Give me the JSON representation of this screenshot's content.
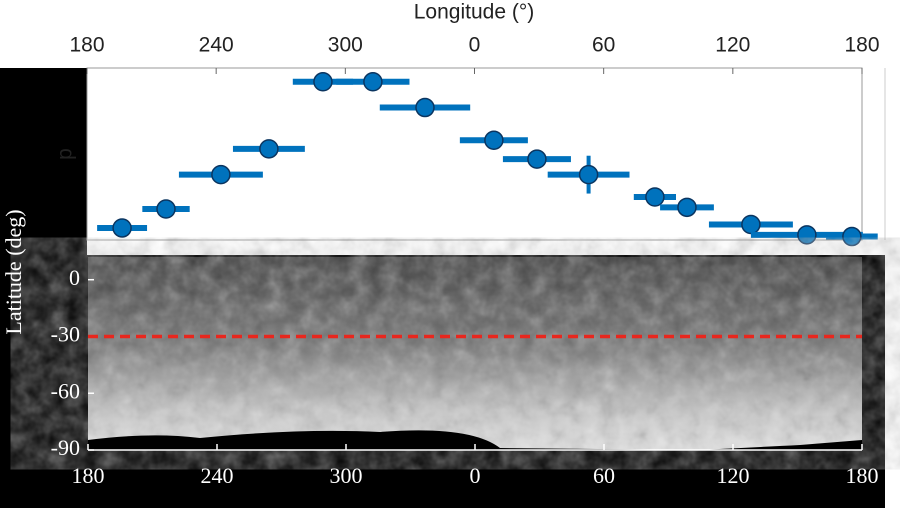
{
  "chart_data": [
    {
      "type": "scatter",
      "xlabel": "Longitude (°)",
      "ylabel": "p",
      "color": "#0072bd",
      "xlim": [
        180,
        540
      ],
      "xticks": [
        180,
        240,
        300,
        {
          "value": 360,
          "label": "0"
        },
        {
          "value": 420,
          "label": "60"
        },
        {
          "value": 480,
          "label": "120"
        },
        {
          "value": 540,
          "label": "180"
        }
      ],
      "ylim": [
        0,
        1
      ],
      "x": [
        196.3,
        216.7,
        242.2,
        264.5,
        289.6,
        312.8,
        337,
        369,
        389,
        413,
        443.8,
        458.7,
        488.4,
        514.4,
        535.3
      ],
      "values": [
        0.07,
        0.18,
        0.38,
        0.53,
        0.92,
        0.92,
        0.77,
        0.58,
        0.47,
        0.38,
        0.25,
        0.19,
        0.09,
        0.03,
        0.02
      ],
      "xerr": [
        11.6,
        11,
        19.5,
        16.7,
        14,
        17,
        21,
        15.8,
        15.8,
        19,
        9.8,
        12.5,
        19.5,
        26,
        12
      ],
      "yerr": [
        0,
        0,
        0,
        0,
        0,
        0,
        0.05,
        0,
        0,
        0.11,
        0,
        0,
        0,
        0,
        0
      ]
    },
    {
      "type": "map",
      "ylabel": "Latitude (deg)",
      "xlim": [
        180,
        540
      ],
      "xticks": [
        180,
        240,
        300,
        {
          "value": 360,
          "label": "0"
        },
        {
          "value": 420,
          "label": "60"
        },
        {
          "value": 480,
          "label": "120"
        },
        {
          "value": 540,
          "label": "180"
        }
      ],
      "ylim": [
        -90,
        12
      ],
      "yticks": [
        0,
        -30,
        -60,
        -90
      ],
      "reference_line": -30,
      "reference_color": "#e8271e"
    }
  ]
}
